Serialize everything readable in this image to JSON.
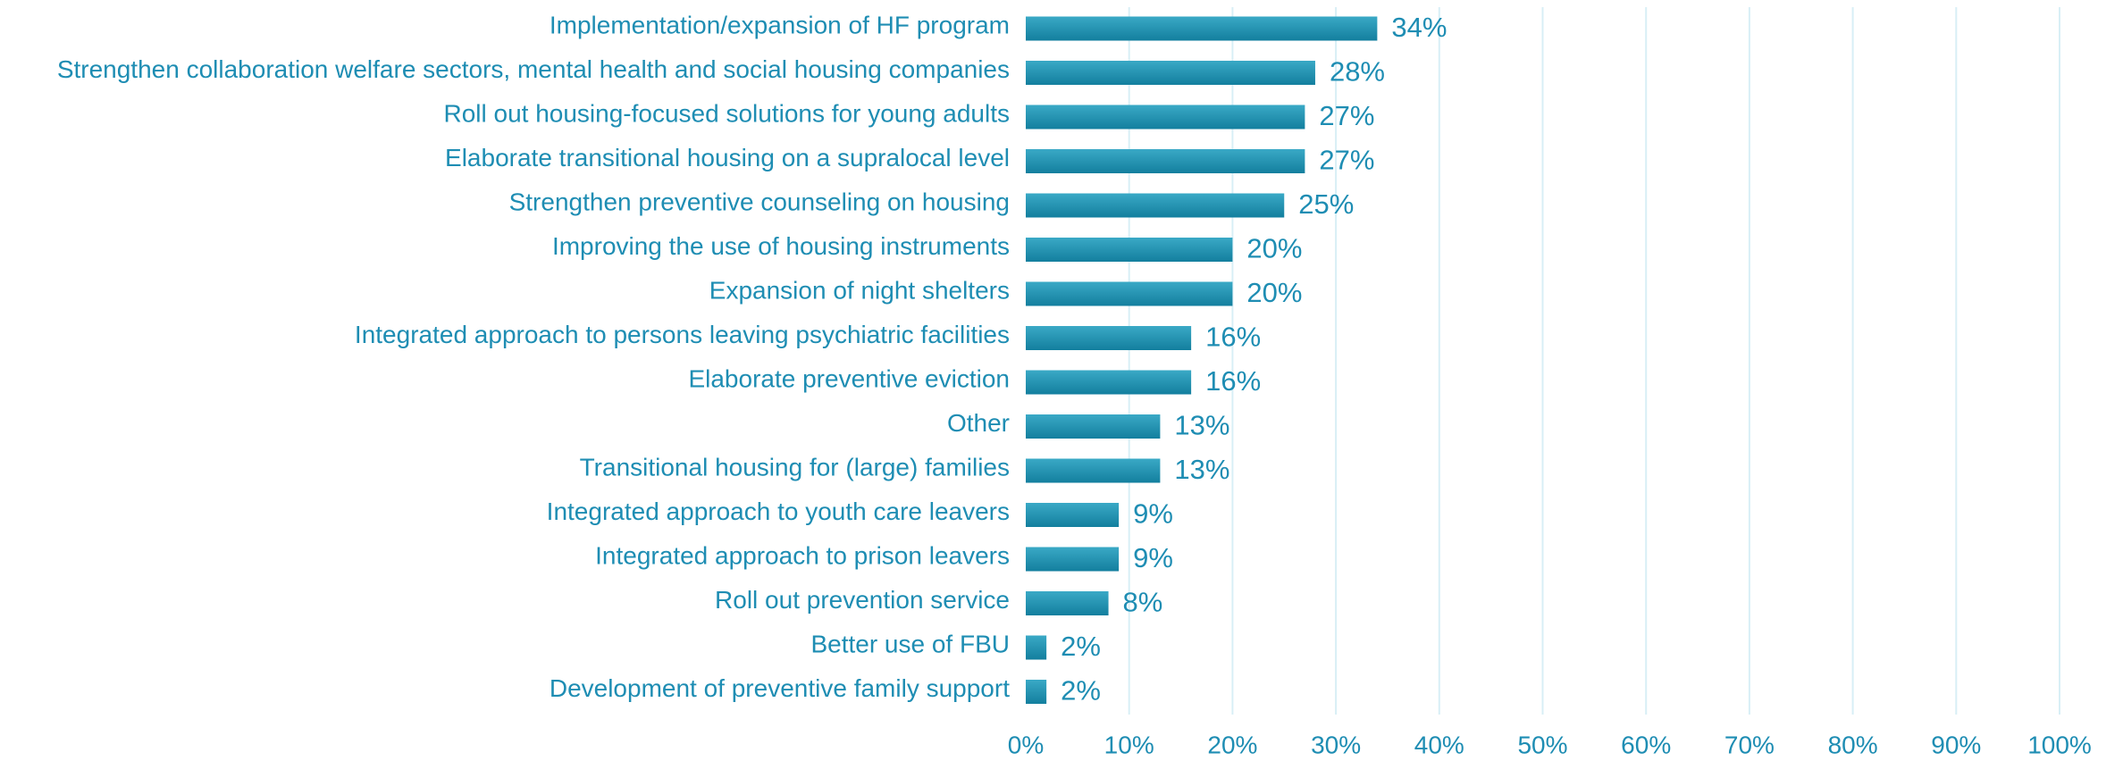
{
  "chart_data": {
    "type": "bar",
    "orientation": "horizontal",
    "categories": [
      "Implementation/expansion of HF program",
      "Strengthen collaboration welfare sectors, mental health and social housing companies",
      "Roll out housing-focused solutions for young adults",
      "Elaborate transitional housing on a supralocal level",
      "Strengthen preventive counseling on housing",
      "Improving the use of housing instruments",
      "Expansion of night shelters",
      "Integrated approach to persons leaving psychiatric facilities",
      "Elaborate preventive eviction",
      "Other",
      "Transitional housing for (large) families",
      "Integrated approach to youth care leavers",
      "Integrated approach to prison leavers",
      "Roll out prevention service",
      "Better use of FBU",
      "Development of preventive family support"
    ],
    "values": [
      34,
      28,
      27,
      27,
      25,
      20,
      20,
      16,
      16,
      13,
      13,
      9,
      9,
      8,
      2,
      2
    ],
    "value_labels": [
      "34%",
      "28%",
      "27%",
      "27%",
      "25%",
      "20%",
      "20%",
      "16%",
      "16%",
      "13%",
      "13%",
      "9%",
      "9%",
      "8%",
      "2%",
      "2%"
    ],
    "color": "#1b8fae",
    "xlim": [
      0,
      100
    ],
    "xticks": [
      {
        "value": 0,
        "label": "0%"
      },
      {
        "value": 10,
        "label": "10%"
      },
      {
        "value": 20,
        "label": "20%"
      },
      {
        "value": 30,
        "label": "30%"
      },
      {
        "value": 40,
        "label": "40%"
      },
      {
        "value": 50,
        "label": "50%"
      },
      {
        "value": 60,
        "label": "60%"
      },
      {
        "value": 70,
        "label": "70%"
      },
      {
        "value": 80,
        "label": "80%"
      },
      {
        "value": 90,
        "label": "90%"
      },
      {
        "value": 100,
        "label": "100%"
      }
    ],
    "grid": true
  }
}
